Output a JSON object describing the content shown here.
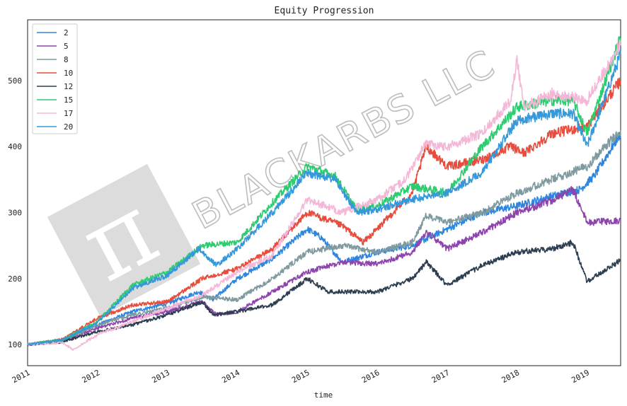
{
  "chart_data": {
    "type": "line",
    "title": "Equity Progression",
    "xlabel": "time",
    "ylabel": "",
    "xlim": [
      2011.0,
      2019.48
    ],
    "ylim": [
      68,
      592
    ],
    "grid": false,
    "legend_position": "top-left",
    "x_ticks": [
      "2011",
      "2012",
      "2013",
      "2014",
      "2015",
      "2016",
      "2017",
      "2018",
      "2019"
    ],
    "y_ticks": [
      100,
      200,
      300,
      400,
      500
    ],
    "watermark": {
      "text": "BLACKARBS LLC",
      "symbol": "π",
      "color": "#bdbdbd"
    },
    "series": [
      {
        "name": "2",
        "color": "#2e86de",
        "x": [
          2011.0,
          2011.5,
          2012.0,
          2012.5,
          2013.0,
          2013.45,
          2013.65,
          2014.0,
          2014.5,
          2015.0,
          2015.2,
          2015.5,
          2016.0,
          2016.5,
          2017.0,
          2017.5,
          2018.0,
          2018.5,
          2018.9,
          2019.1,
          2019.48
        ],
        "values": [
          100,
          107,
          130,
          150,
          162,
          180,
          168,
          200,
          230,
          275,
          262,
          225,
          240,
          250,
          275,
          300,
          310,
          325,
          335,
          355,
          420
        ]
      },
      {
        "name": "5",
        "color": "#8e44ad",
        "x": [
          2011.0,
          2011.5,
          2012.0,
          2012.5,
          2013.0,
          2013.5,
          2013.7,
          2014.0,
          2014.5,
          2015.0,
          2015.5,
          2016.0,
          2016.5,
          2016.7,
          2017.0,
          2017.5,
          2018.0,
          2018.5,
          2018.8,
          2019.0,
          2019.48
        ],
        "values": [
          100,
          105,
          125,
          140,
          150,
          165,
          145,
          150,
          180,
          210,
          225,
          222,
          240,
          270,
          245,
          270,
          300,
          318,
          335,
          285,
          288
        ]
      },
      {
        "name": "8",
        "color": "#7f9ba0",
        "x": [
          2011.0,
          2011.5,
          2012.0,
          2012.5,
          2013.0,
          2013.5,
          2014.0,
          2014.5,
          2015.0,
          2015.5,
          2016.0,
          2016.5,
          2016.7,
          2017.0,
          2017.5,
          2018.0,
          2018.5,
          2019.0,
          2019.48
        ],
        "values": [
          100,
          106,
          130,
          145,
          155,
          172,
          168,
          200,
          240,
          250,
          240,
          255,
          295,
          285,
          300,
          330,
          350,
          370,
          425
        ]
      },
      {
        "name": "10",
        "color": "#e74c3c",
        "x": [
          2011.0,
          2011.5,
          2012.0,
          2012.5,
          2013.0,
          2013.5,
          2014.0,
          2014.5,
          2015.0,
          2015.5,
          2015.8,
          2016.0,
          2016.5,
          2016.7,
          2017.0,
          2017.5,
          2017.9,
          2018.1,
          2018.5,
          2019.0,
          2019.48
        ],
        "values": [
          100,
          108,
          140,
          160,
          165,
          200,
          215,
          245,
          300,
          280,
          255,
          275,
          330,
          400,
          370,
          380,
          400,
          390,
          420,
          430,
          500
        ]
      },
      {
        "name": "12",
        "color": "#2c3e50",
        "x": [
          2011.0,
          2011.5,
          2012.0,
          2012.5,
          2013.0,
          2013.5,
          2013.65,
          2014.0,
          2014.5,
          2015.0,
          2015.3,
          2016.0,
          2016.5,
          2016.7,
          2017.0,
          2017.5,
          2018.0,
          2018.5,
          2018.8,
          2019.0,
          2019.48
        ],
        "values": [
          100,
          104,
          120,
          130,
          145,
          165,
          145,
          150,
          160,
          200,
          180,
          180,
          200,
          225,
          190,
          220,
          240,
          245,
          255,
          195,
          228
        ]
      },
      {
        "name": "15",
        "color": "#2ecc71",
        "x": [
          2011.0,
          2011.5,
          2012.0,
          2012.5,
          2013.0,
          2013.5,
          2014.0,
          2014.5,
          2015.0,
          2015.4,
          2015.7,
          2016.0,
          2016.5,
          2017.0,
          2017.5,
          2018.0,
          2018.5,
          2018.8,
          2019.0,
          2019.48
        ],
        "values": [
          100,
          107,
          135,
          190,
          210,
          250,
          255,
          315,
          370,
          355,
          305,
          310,
          340,
          330,
          400,
          460,
          470,
          470,
          420,
          565
        ]
      },
      {
        "name": "17",
        "color": "#f5b7d8",
        "x": [
          2011.0,
          2011.5,
          2011.65,
          2012.0,
          2012.5,
          2013.0,
          2013.5,
          2014.0,
          2014.5,
          2015.0,
          2015.5,
          2016.0,
          2016.4,
          2016.7,
          2017.0,
          2017.5,
          2017.9,
          2018.0,
          2018.1,
          2018.5,
          2019.0,
          2019.48
        ],
        "values": [
          100,
          103,
          92,
          115,
          135,
          155,
          175,
          210,
          235,
          320,
          300,
          320,
          350,
          405,
          400,
          420,
          470,
          530,
          460,
          480,
          470,
          555
        ]
      },
      {
        "name": "20",
        "color": "#3498db",
        "x": [
          2011.0,
          2011.5,
          2012.0,
          2012.5,
          2013.0,
          2013.45,
          2013.7,
          2014.0,
          2014.5,
          2015.0,
          2015.4,
          2015.7,
          2016.0,
          2016.5,
          2017.0,
          2017.5,
          2018.0,
          2018.5,
          2018.8,
          2019.0,
          2019.48
        ],
        "values": [
          100,
          107,
          133,
          185,
          205,
          245,
          220,
          245,
          300,
          360,
          350,
          300,
          305,
          320,
          330,
          360,
          440,
          450,
          450,
          400,
          540
        ]
      }
    ]
  }
}
